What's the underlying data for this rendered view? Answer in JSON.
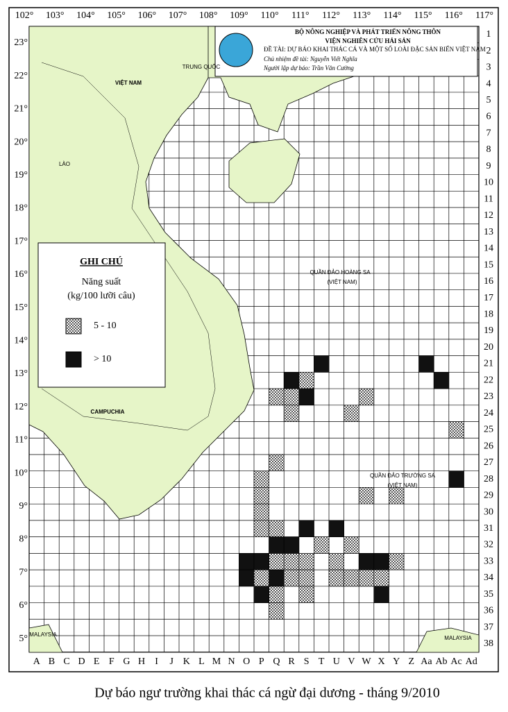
{
  "header": {
    "lines": [
      "BỘ NÔNG NGHIỆP VÀ PHÁT TRIỂN NÔNG THÔN",
      "VIỆN NGHIÊN CỨU HẢI SẢN",
      "ĐỀ TÀI: DỰ BÁO KHAI THÁC CÁ VÀ MỘT SỐ LOÀI ĐẶC SẢN BIỂN VIỆT NAM",
      "Chủ nhiệm đề tài: Nguyễn Viết Nghĩa",
      "Người lập dự báo: Trần Văn Cường"
    ]
  },
  "grid": {
    "longitudes": [
      "102°",
      "103°",
      "104°",
      "105°",
      "106°",
      "107°",
      "108°",
      "109°",
      "110°",
      "111°",
      "112°",
      "113°",
      "114°",
      "115°",
      "116°",
      "117°"
    ],
    "latitudes": [
      "23°",
      "22°",
      "21°",
      "20°",
      "19°",
      "18°",
      "17°",
      "16°",
      "15°",
      "14°",
      "13°",
      "12°",
      "11°",
      "10°",
      "9°",
      "8°",
      "7°",
      "6°",
      "5°"
    ],
    "rows": [
      1,
      2,
      3,
      4,
      5,
      6,
      7,
      8,
      9,
      10,
      11,
      12,
      13,
      14,
      15,
      16,
      17,
      18,
      19,
      20,
      21,
      22,
      23,
      24,
      25,
      26,
      27,
      28,
      29,
      30,
      31,
      32,
      33,
      34,
      35,
      36,
      37,
      38
    ],
    "columns": [
      "A",
      "B",
      "C",
      "D",
      "E",
      "F",
      "G",
      "H",
      "I",
      "J",
      "K",
      "L",
      "M",
      "N",
      "O",
      "P",
      "Q",
      "R",
      "S",
      "T",
      "U",
      "V",
      "W",
      "X",
      "Y",
      "Z",
      "Aa",
      "Ab",
      "Ac",
      "Ad"
    ]
  },
  "places": [
    "TRUNG QUỐC",
    "VIỆT NAM",
    "LÀO",
    "CAMPUCHIA",
    "QUẦN ĐẢO HOÀNG SA",
    "(VIỆT NAM)",
    "QUẦN ĐẢO TRƯỜNG SA",
    "(VIỆT NAM)",
    "MALAYSIA",
    "MALAYSIA"
  ],
  "legend": {
    "title": "GHI CHÚ",
    "subtitle": "Năng suất",
    "unit": "(kg/100 lưỡi câu)",
    "items": [
      {
        "label": "5 - 10",
        "cells": [
          [
            "S",
            22
          ],
          [
            "Q",
            23
          ],
          [
            "R",
            23
          ],
          [
            "W",
            23
          ],
          [
            "R",
            24
          ],
          [
            "V",
            24
          ],
          [
            "Ac",
            25
          ],
          [
            "Q",
            27
          ],
          [
            "P",
            28
          ],
          [
            "P",
            29
          ],
          [
            "W",
            29
          ],
          [
            "Y",
            29
          ],
          [
            "P",
            30
          ],
          [
            "P",
            31
          ],
          [
            "Q",
            31
          ],
          [
            "T",
            32
          ],
          [
            "V",
            32
          ],
          [
            "Q",
            33
          ],
          [
            "R",
            33
          ],
          [
            "S",
            33
          ],
          [
            "U",
            33
          ],
          [
            "Y",
            33
          ],
          [
            "P",
            34
          ],
          [
            "R",
            34
          ],
          [
            "S",
            34
          ],
          [
            "U",
            34
          ],
          [
            "V",
            34
          ],
          [
            "W",
            34
          ],
          [
            "X",
            34
          ],
          [
            "Q",
            35
          ],
          [
            "S",
            35
          ],
          [
            "Q",
            36
          ]
        ]
      },
      {
        "label": "> 10",
        "cells": [
          [
            "T",
            21
          ],
          [
            "Aa",
            21
          ],
          [
            "R",
            22
          ],
          [
            "Ab",
            22
          ],
          [
            "S",
            23
          ],
          [
            "Ac",
            28
          ],
          [
            "S",
            31
          ],
          [
            "U",
            31
          ],
          [
            "Q",
            32
          ],
          [
            "R",
            32
          ],
          [
            "O",
            33
          ],
          [
            "P",
            33
          ],
          [
            "W",
            33
          ],
          [
            "X",
            33
          ],
          [
            "O",
            34
          ],
          [
            "Q",
            34
          ],
          [
            "P",
            35
          ],
          [
            "X",
            35
          ]
        ]
      }
    ]
  },
  "caption": "Dự báo ngư trường khai thác cá ngừ đại dương - tháng 9/2010"
}
